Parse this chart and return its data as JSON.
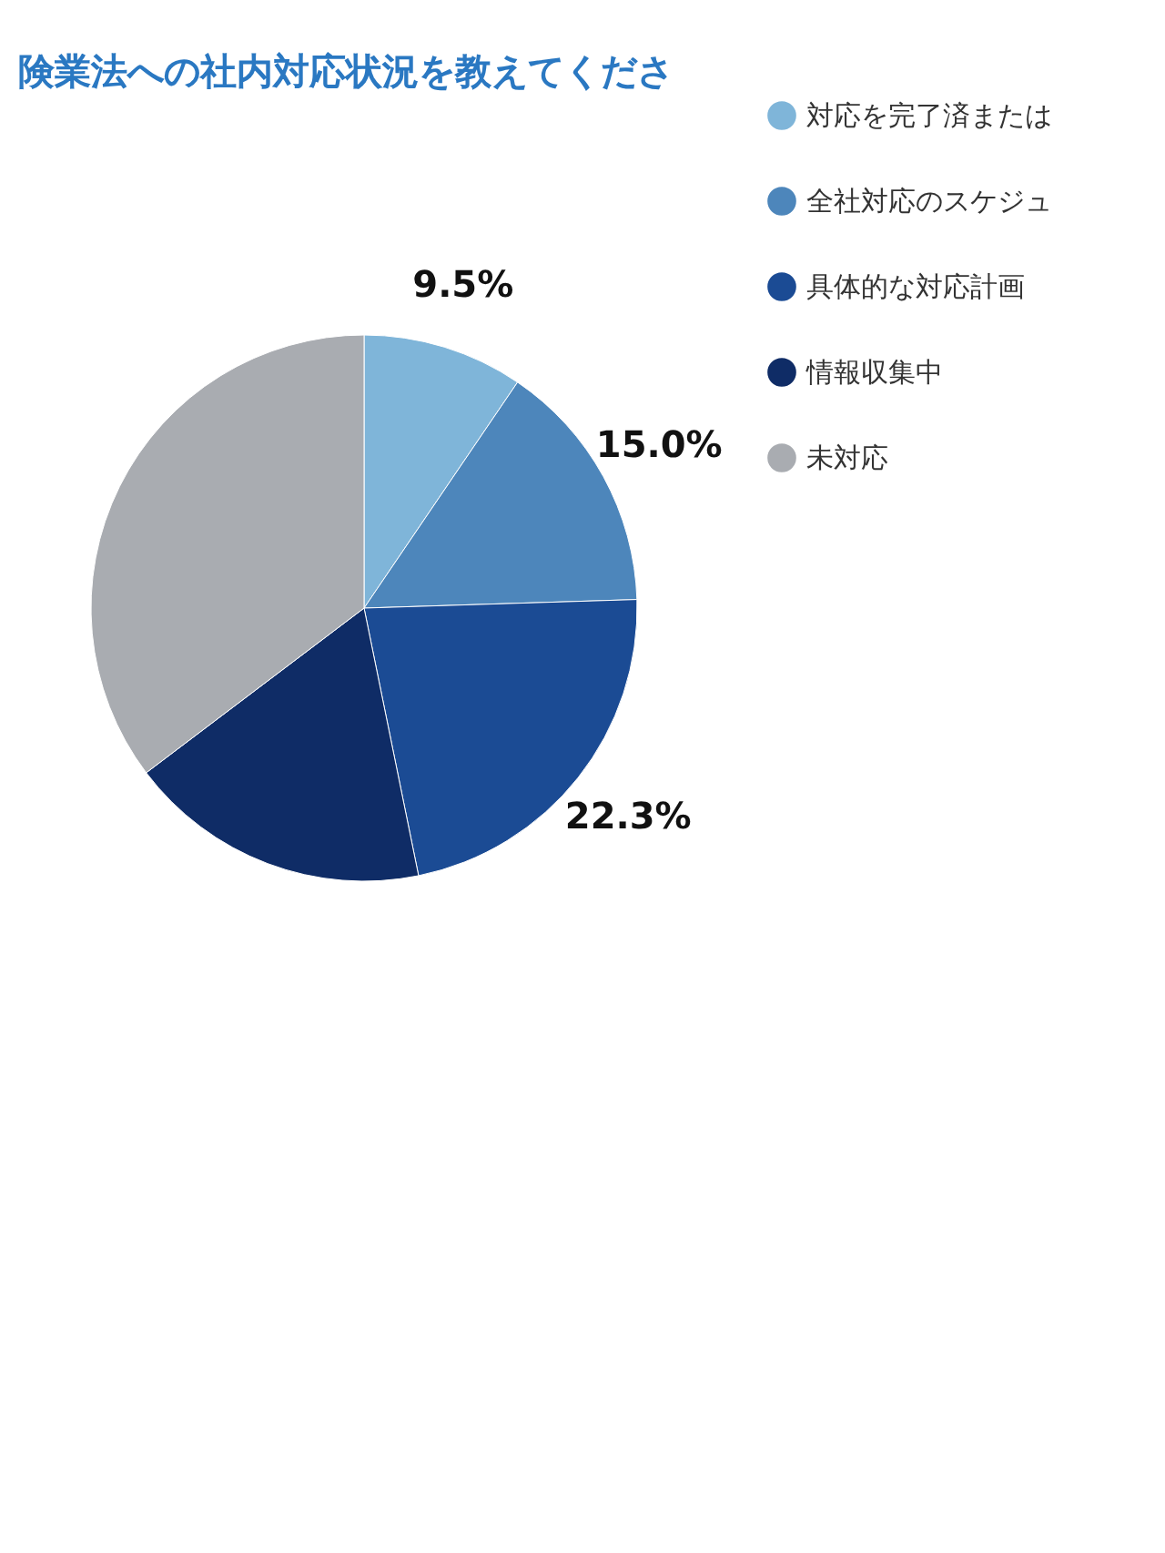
{
  "chart_data": {
    "type": "pie",
    "title": "険業法への社内対応状況を教えてくださ",
    "categories": [
      "対応を完了済または",
      "全社対応のスケジュ",
      "具体的な対応計画",
      "情報収集中",
      "未対応"
    ],
    "values": [
      9.5,
      15.0,
      22.3,
      17.9,
      35.3
    ],
    "value_labels": [
      "9.5%",
      "15.0%",
      "22.3%",
      null,
      null
    ],
    "colors": [
      "#7fb5d9",
      "#4d86bb",
      "#1b4b94",
      "#0f2c66",
      "#a9acb1"
    ],
    "legend": "right"
  }
}
